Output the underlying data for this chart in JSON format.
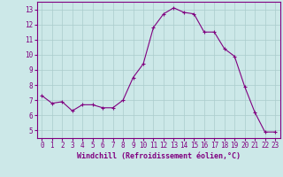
{
  "x": [
    0,
    1,
    2,
    3,
    4,
    5,
    6,
    7,
    8,
    9,
    10,
    11,
    12,
    13,
    14,
    15,
    16,
    17,
    18,
    19,
    20,
    21,
    22,
    23
  ],
  "y": [
    7.3,
    6.8,
    6.9,
    6.3,
    6.7,
    6.7,
    6.5,
    6.5,
    7.0,
    8.5,
    9.4,
    11.8,
    12.7,
    13.1,
    12.8,
    12.7,
    11.5,
    11.5,
    10.4,
    9.9,
    7.9,
    6.2,
    4.9,
    4.9
  ],
  "line_color": "#800080",
  "marker": "+",
  "marker_size": 3,
  "bg_color": "#cce8e8",
  "grid_color": "#aacccc",
  "xlabel": "Windchill (Refroidissement éolien,°C)",
  "xlim": [
    -0.5,
    23.5
  ],
  "ylim": [
    4.5,
    13.5
  ],
  "yticks": [
    5,
    6,
    7,
    8,
    9,
    10,
    11,
    12,
    13
  ],
  "xticks": [
    0,
    1,
    2,
    3,
    4,
    5,
    6,
    7,
    8,
    9,
    10,
    11,
    12,
    13,
    14,
    15,
    16,
    17,
    18,
    19,
    20,
    21,
    22,
    23
  ],
  "tick_color": "#800080",
  "label_color": "#800080",
  "axis_color": "#800080",
  "font_size_ticks": 5.5,
  "font_size_xlabel": 6.0
}
